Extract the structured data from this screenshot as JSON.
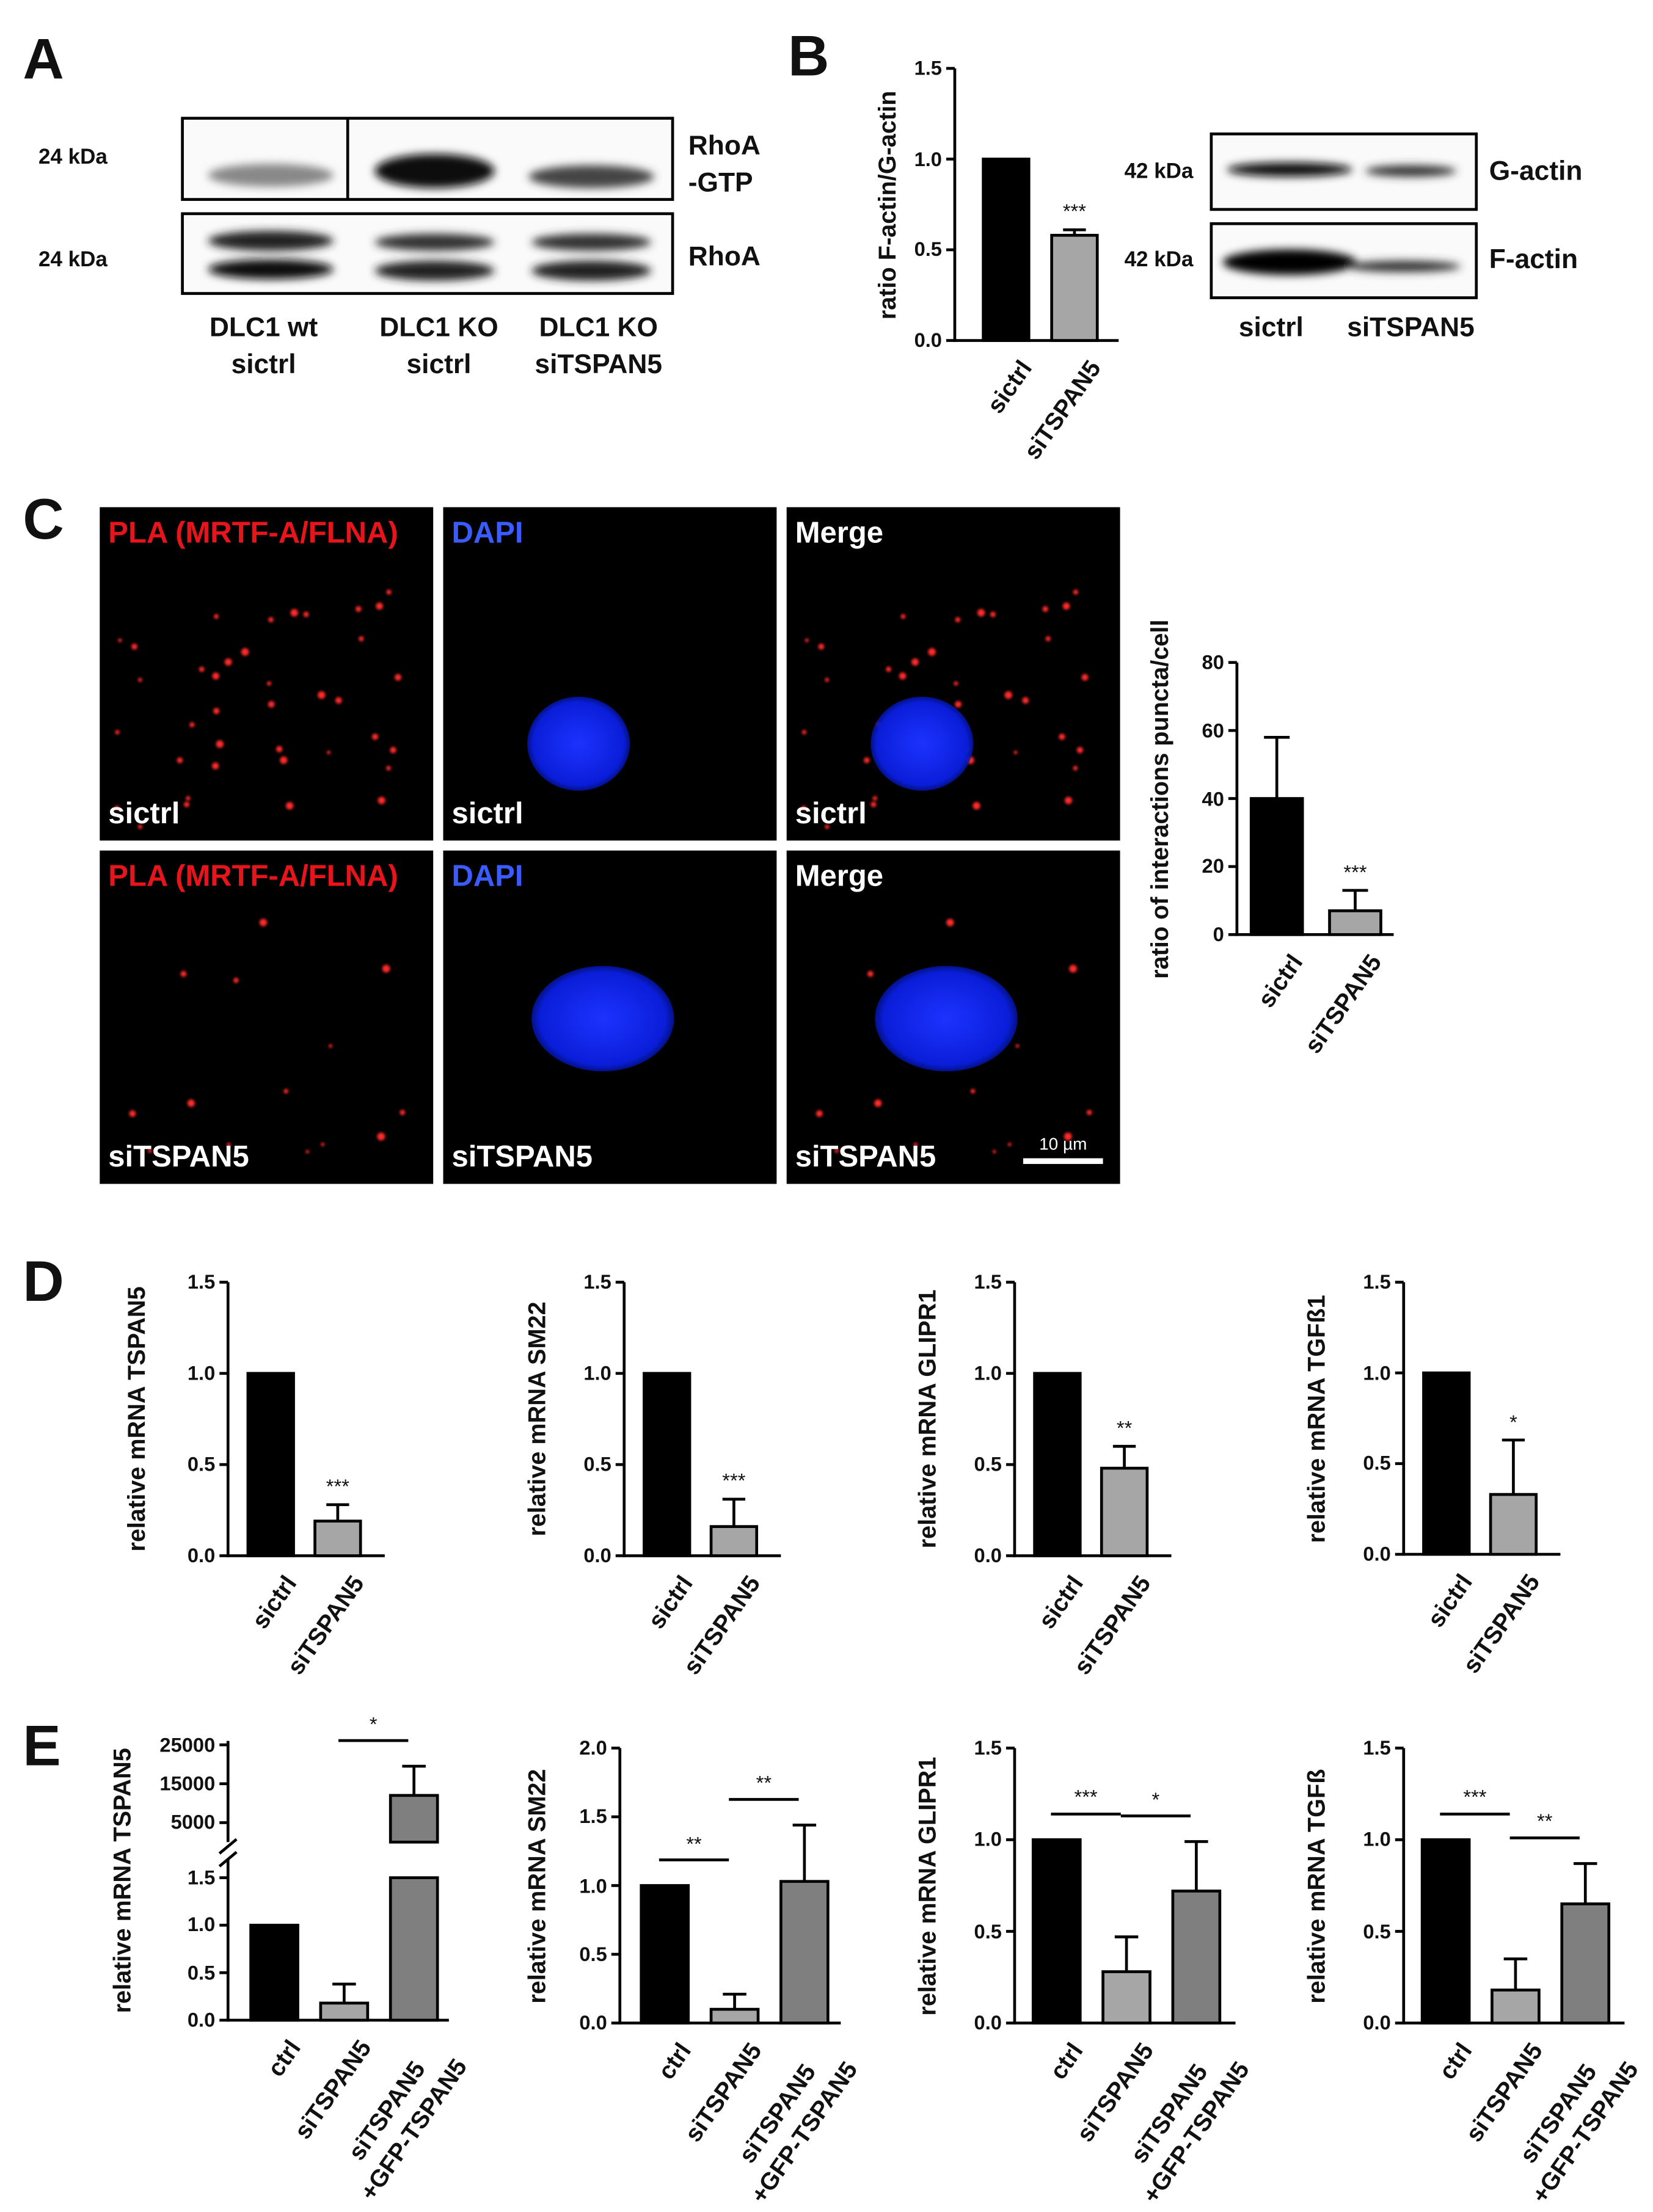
{
  "panel_labels": [
    "A",
    "B",
    "C",
    "D",
    "E"
  ],
  "blot_a": {
    "markers": [
      "24 kDa",
      "24 kDa"
    ],
    "bands": [
      "RhoA\n-GTP",
      "RhoA"
    ],
    "lanes": [
      "DLC1 wt\nsictrl",
      "DLC1 KO\nsictrl",
      "DLC1 KO\nsiTSPAN5"
    ]
  },
  "blot_b": {
    "markers": [
      "42 kDa",
      "42 kDa"
    ],
    "bands": [
      "G-actin",
      "F-actin"
    ],
    "lanes": [
      "sictrl",
      "siTSPAN5"
    ]
  },
  "micrographs": {
    "channels": [
      "PLA (MRTF-A/FLNA)",
      "DAPI",
      "Merge"
    ],
    "conditions": [
      "sictrl",
      "siTSPAN5"
    ],
    "scale_bar": "10 µm"
  },
  "chart_data": [
    {
      "type": "bar",
      "ylabel": "ratio F-actin/G-actin",
      "categories": [
        "sictrl",
        "siTSPAN5"
      ],
      "values": [
        1.0,
        0.58
      ],
      "errors": [
        0,
        0.03
      ],
      "colors": [
        "#000000",
        "#a6a6a6"
      ],
      "ylim": [
        0,
        1.5
      ],
      "yticks": [
        {
          "value": 0,
          "label": "0.0"
        },
        0.5,
        {
          "value": 1,
          "label": "1.0"
        },
        1.5
      ],
      "significance": [
        {
          "bar": 1,
          "label": "***"
        }
      ]
    },
    {
      "type": "bar",
      "ylabel": "ratio of interactions puncta/cell",
      "categories": [
        "sictrl",
        "siTSPAN5"
      ],
      "values": [
        40,
        7
      ],
      "errors": [
        18,
        6
      ],
      "colors": [
        "#000000",
        "#a6a6a6"
      ],
      "ylim": [
        0,
        80
      ],
      "yticks": [
        0,
        20,
        40,
        60,
        80
      ],
      "significance": [
        {
          "bar": 1,
          "label": "***"
        }
      ]
    },
    {
      "type": "bar",
      "ylabel": "relative mRNA TSPAN5",
      "categories": [
        "sictrl",
        "siTSPAN5"
      ],
      "values": [
        1.0,
        0.19
      ],
      "errors": [
        0,
        0.09
      ],
      "colors": [
        "#000000",
        "#a6a6a6"
      ],
      "ylim": [
        0,
        1.5
      ],
      "yticks": [
        {
          "value": 0,
          "label": "0.0"
        },
        0.5,
        {
          "value": 1,
          "label": "1.0"
        },
        1.5
      ],
      "significance": [
        {
          "bar": 1,
          "label": "***"
        }
      ]
    },
    {
      "type": "bar",
      "ylabel": "relative mRNA SM22",
      "categories": [
        "sictrl",
        "siTSPAN5"
      ],
      "values": [
        1.0,
        0.16
      ],
      "errors": [
        0,
        0.15
      ],
      "colors": [
        "#000000",
        "#a6a6a6"
      ],
      "ylim": [
        0,
        1.5
      ],
      "yticks": [
        {
          "value": 0,
          "label": "0.0"
        },
        0.5,
        {
          "value": 1,
          "label": "1.0"
        },
        1.5
      ],
      "significance": [
        {
          "bar": 1,
          "label": "***"
        }
      ]
    },
    {
      "type": "bar",
      "ylabel": "relative mRNA GLIPR1",
      "categories": [
        "sictrl",
        "siTSPAN5"
      ],
      "values": [
        1.0,
        0.48
      ],
      "errors": [
        0,
        0.12
      ],
      "colors": [
        "#000000",
        "#a6a6a6"
      ],
      "ylim": [
        0,
        1.5
      ],
      "yticks": [
        {
          "value": 0,
          "label": "0.0"
        },
        0.5,
        {
          "value": 1,
          "label": "1.0"
        },
        1.5
      ],
      "significance": [
        {
          "bar": 1,
          "label": "**"
        }
      ]
    },
    {
      "type": "bar",
      "ylabel": "relative mRNA TGFß1",
      "categories": [
        "sictrl",
        "siTSPAN5"
      ],
      "values": [
        1.0,
        0.33
      ],
      "errors": [
        0,
        0.3
      ],
      "colors": [
        "#000000",
        "#a6a6a6"
      ],
      "ylim": [
        0,
        1.5
      ],
      "yticks": [
        {
          "value": 0,
          "label": "0.0"
        },
        0.5,
        {
          "value": 1,
          "label": "1.0"
        },
        1.5
      ],
      "significance": [
        {
          "bar": 1,
          "label": "*"
        }
      ]
    },
    {
      "type": "bar",
      "ylabel": "relative mRNA TSPAN5",
      "categories": [
        "ctrl",
        "siTSPAN5",
        "siTSPAN5\n+GFP-TSPAN5"
      ],
      "values": [
        1.0,
        0.18,
        12000
      ],
      "errors": [
        0,
        0.2,
        7500
      ],
      "colors": [
        "#000000",
        "#a6a6a6",
        "#7f7f7f"
      ],
      "ylim": [
        0,
        1.5
      ],
      "yticks": [
        {
          "value": 0,
          "label": "0.0"
        },
        0.5,
        {
          "value": 1,
          "label": "1.0"
        },
        1.5
      ],
      "axis_break": true,
      "ylim_upper": [
        0,
        26000
      ],
      "yticks_upper": [
        5000,
        15000,
        25000
      ],
      "comparisons": [
        {
          "pair": [
            1,
            2
          ],
          "label": "*"
        }
      ]
    },
    {
      "type": "bar",
      "ylabel": "relative mRNA SM22",
      "categories": [
        "ctrl",
        "siTSPAN5",
        "siTSPAN5\n+GFP-TSPAN5"
      ],
      "values": [
        1.0,
        0.1,
        1.03
      ],
      "errors": [
        0,
        0.11,
        0.41
      ],
      "colors": [
        "#000000",
        "#a6a6a6",
        "#7f7f7f"
      ],
      "ylim": [
        0,
        2
      ],
      "yticks": [
        {
          "value": 0,
          "label": "0.0"
        },
        0.5,
        {
          "value": 1,
          "label": "1.0"
        },
        1.5,
        {
          "value": 2,
          "label": "2.0"
        }
      ],
      "comparisons": [
        {
          "pair": [
            0,
            1
          ],
          "label": "**"
        },
        {
          "pair": [
            1,
            2
          ],
          "label": "**"
        }
      ]
    },
    {
      "type": "bar",
      "ylabel": "relative mRNA GLIPR1",
      "categories": [
        "ctrl",
        "siTSPAN5",
        "siTSPAN5\n+GFP-TSPAN5"
      ],
      "values": [
        1.0,
        0.28,
        0.72
      ],
      "errors": [
        0,
        0.19,
        0.27
      ],
      "colors": [
        "#000000",
        "#a6a6a6",
        "#7f7f7f"
      ],
      "ylim": [
        0,
        1.5
      ],
      "yticks": [
        {
          "value": 0,
          "label": "0.0"
        },
        0.5,
        {
          "value": 1,
          "label": "1.0"
        },
        1.5
      ],
      "comparisons": [
        {
          "pair": [
            0,
            1
          ],
          "label": "***"
        },
        {
          "pair": [
            1,
            2
          ],
          "label": "*"
        }
      ]
    },
    {
      "type": "bar",
      "ylabel": "relative mRNA TGFß",
      "categories": [
        "ctrl",
        "siTSPAN5",
        "siTSPAN5\n+GFP-TSPAN5"
      ],
      "values": [
        1.0,
        0.18,
        0.65
      ],
      "errors": [
        0,
        0.17,
        0.22
      ],
      "colors": [
        "#000000",
        "#a6a6a6",
        "#7f7f7f"
      ],
      "ylim": [
        0,
        1.5
      ],
      "yticks": [
        {
          "value": 0,
          "label": "0.0"
        },
        0.5,
        {
          "value": 1,
          "label": "1.0"
        },
        1.5
      ],
      "comparisons": [
        {
          "pair": [
            0,
            1
          ],
          "label": "***"
        },
        {
          "pair": [
            1,
            2
          ],
          "label": "**"
        }
      ]
    }
  ]
}
